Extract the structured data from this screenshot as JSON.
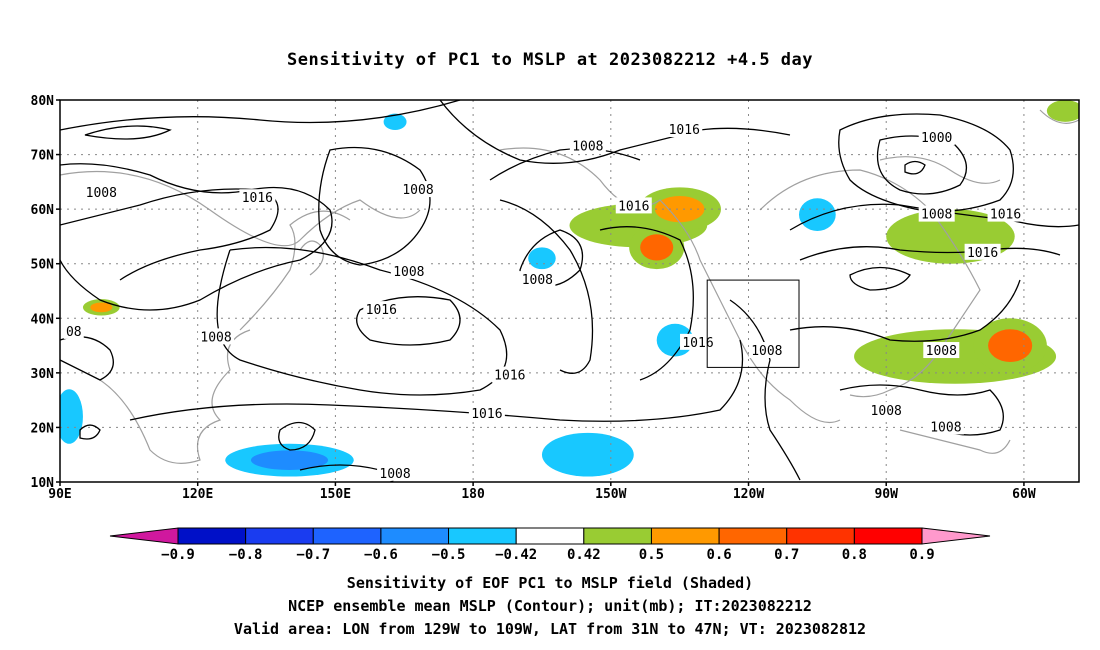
{
  "title": "Sensitivity of PC1 to MSLP at 2023082212 +4.5 day",
  "map": {
    "lon_range": [
      90,
      312
    ],
    "lat_range": [
      10,
      80
    ],
    "lat_ticks": [
      {
        "lat": 80,
        "label": "80N"
      },
      {
        "lat": 70,
        "label": "70N"
      },
      {
        "lat": 60,
        "label": "60N"
      },
      {
        "lat": 50,
        "label": "50N"
      },
      {
        "lat": 40,
        "label": "40N"
      },
      {
        "lat": 30,
        "label": "30N"
      },
      {
        "lat": 20,
        "label": "20N"
      },
      {
        "lat": 10,
        "label": "10N"
      }
    ],
    "lon_ticks": [
      {
        "lon": 90,
        "label": "90E"
      },
      {
        "lon": 120,
        "label": "120E"
      },
      {
        "lon": 150,
        "label": "150E"
      },
      {
        "lon": 180,
        "label": "180"
      },
      {
        "lon": 210,
        "label": "150W"
      },
      {
        "lon": 240,
        "label": "120W"
      },
      {
        "lon": 270,
        "label": "90W"
      },
      {
        "lon": 300,
        "label": "60W"
      }
    ],
    "valid_box": {
      "lon": [
        231,
        251
      ],
      "lat": [
        31,
        47
      ]
    },
    "contour_labels": [
      {
        "text": "1016",
        "lon": 226,
        "lat": 74.5
      },
      {
        "text": "1008",
        "lon": 205,
        "lat": 71.5
      },
      {
        "text": "1000",
        "lon": 281,
        "lat": 73
      },
      {
        "text": "1008",
        "lon": 99,
        "lat": 63
      },
      {
        "text": "1016",
        "lon": 133,
        "lat": 62
      },
      {
        "text": "1008",
        "lon": 168,
        "lat": 63.5
      },
      {
        "text": "1016",
        "lon": 215,
        "lat": 60.5
      },
      {
        "text": "1008",
        "lon": 281,
        "lat": 59
      },
      {
        "text": "1016",
        "lon": 296,
        "lat": 59
      },
      {
        "text": "1016",
        "lon": 291,
        "lat": 52
      },
      {
        "text": "1008",
        "lon": 166,
        "lat": 48.5
      },
      {
        "text": "1008",
        "lon": 194,
        "lat": 47
      },
      {
        "text": "1016",
        "lon": 160,
        "lat": 41.5
      },
      {
        "text": "08",
        "lon": 93,
        "lat": 37.5
      },
      {
        "text": "1008",
        "lon": 124,
        "lat": 36.5
      },
      {
        "text": "1016",
        "lon": 229,
        "lat": 35.5
      },
      {
        "text": "1008",
        "lon": 244,
        "lat": 34
      },
      {
        "text": "1008",
        "lon": 282,
        "lat": 34
      },
      {
        "text": "1016",
        "lon": 188,
        "lat": 29.5
      },
      {
        "text": "1016",
        "lon": 183,
        "lat": 22.5
      },
      {
        "text": "1008",
        "lon": 270,
        "lat": 23
      },
      {
        "text": "1008",
        "lon": 283,
        "lat": 20
      },
      {
        "text": "1008",
        "lon": 163,
        "lat": 11.5
      }
    ],
    "positive_regions": [
      {
        "name": "north-pacific-band",
        "lon": 216,
        "lat": 57,
        "rlon": 15,
        "rlat": 4,
        "level": 0.45
      },
      {
        "name": "gulf-alaska-core",
        "lon": 220,
        "lat": 53,
        "rlon": 6,
        "rlat": 4,
        "level": 0.6
      },
      {
        "name": "alaska-core",
        "lon": 225,
        "lat": 60,
        "rlon": 9,
        "rlat": 4,
        "level": 0.55
      },
      {
        "name": "hudson-band",
        "lon": 284,
        "lat": 55,
        "rlon": 14,
        "rlat": 5,
        "level": 0.45
      },
      {
        "name": "atlantic-band",
        "lon": 285,
        "lat": 33,
        "rlon": 22,
        "rlat": 5,
        "level": 0.45
      },
      {
        "name": "atlantic-core",
        "lon": 297,
        "lat": 35,
        "rlon": 8,
        "rlat": 5,
        "level": 0.62
      },
      {
        "name": "tibet-spot",
        "lon": 99,
        "lat": 42,
        "rlon": 4,
        "rlat": 1.5,
        "level": 0.5
      },
      {
        "name": "arctic-spot",
        "lon": 309,
        "lat": 78,
        "rlon": 4,
        "rlat": 2,
        "level": 0.45
      }
    ],
    "negative_regions": [
      {
        "name": "west-pacific-tropics",
        "lon": 140,
        "lat": 14,
        "rlon": 14,
        "rlat": 3,
        "level": -0.55
      },
      {
        "name": "central-pacific-tropics",
        "lon": 205,
        "lat": 15,
        "rlon": 10,
        "rlat": 4,
        "level": -0.5
      },
      {
        "name": "arabian-spot",
        "lon": 92,
        "lat": 22,
        "rlon": 3,
        "rlat": 5,
        "level": -0.5
      },
      {
        "name": "bering-spot",
        "lon": 195,
        "lat": 51,
        "rlon": 3,
        "rlat": 2,
        "level": -0.45
      },
      {
        "name": "east-pacific-spot",
        "lon": 224,
        "lat": 36,
        "rlon": 4,
        "rlat": 3,
        "level": -0.5
      },
      {
        "name": "canada-spot",
        "lon": 255,
        "lat": 59,
        "rlon": 4,
        "rlat": 3,
        "level": -0.5
      },
      {
        "name": "siberia-spot",
        "lon": 163,
        "lat": 76,
        "rlon": 2.5,
        "rlat": 1.5,
        "level": -0.45
      }
    ]
  },
  "colorbar": {
    "colors": [
      "#d0189e",
      "#0010c8",
      "#1a3cf0",
      "#1e63ff",
      "#1e8cff",
      "#18c8ff",
      "#ffffff",
      "#99cc33",
      "#ff9900",
      "#ff6600",
      "#ff3300",
      "#ff0000",
      "#ff99cc"
    ],
    "labels": [
      "−0.9",
      "−0.8",
      "−0.7",
      "−0.6",
      "−0.5",
      "−0.42",
      "0.42",
      "0.5",
      "0.6",
      "0.7",
      "0.8",
      "0.9"
    ]
  },
  "captions": [
    "Sensitivity of EOF PC1 to MSLP field (Shaded)",
    "NCEP ensemble mean MSLP (Contour); unit(mb); IT:2023082212",
    "Valid area: LON from 129W to 109W, LAT from 31N to 47N; VT: 2023082812"
  ]
}
